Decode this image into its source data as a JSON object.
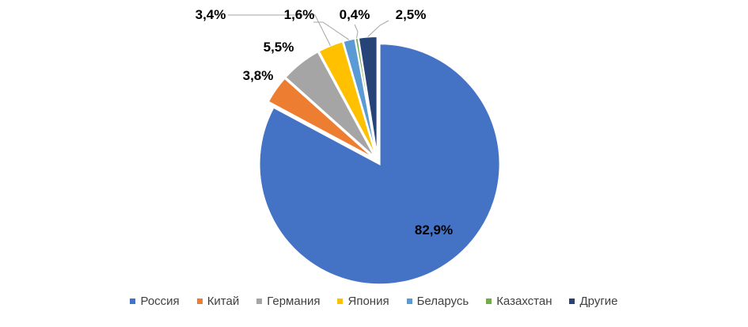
{
  "chart_data": {
    "type": "pie",
    "title": "",
    "slices": [
      {
        "name": "Россия",
        "value": 82.9,
        "label": "82,9%",
        "color": "#4472C4"
      },
      {
        "name": "Китай",
        "value": 3.8,
        "label": "3,8%",
        "color": "#ED7D31"
      },
      {
        "name": "Германия",
        "value": 5.5,
        "label": "5,5%",
        "color": "#A5A5A5"
      },
      {
        "name": "Япония",
        "value": 3.4,
        "label": "3,4%",
        "color": "#FFC000"
      },
      {
        "name": "Беларусь",
        "value": 1.6,
        "label": "1,6%",
        "color": "#5B9BD5"
      },
      {
        "name": "Казахстан",
        "value": 0.4,
        "label": "0,4%",
        "color": "#70AD47"
      },
      {
        "name": "Другие",
        "value": 2.5,
        "label": "2,5%",
        "color": "#264478"
      }
    ],
    "start_angle_deg": 0,
    "direction": "clockwise",
    "exploded": true,
    "legend_position": "bottom"
  }
}
